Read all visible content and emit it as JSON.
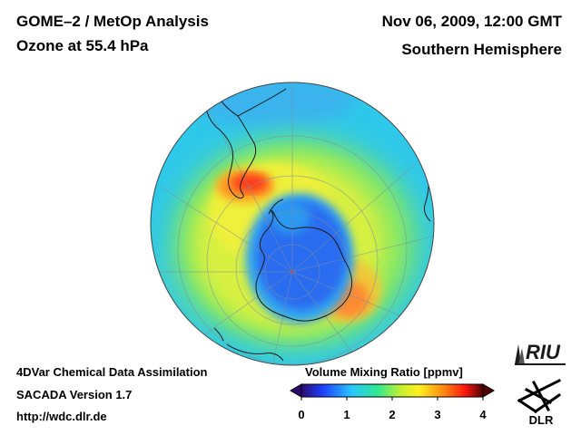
{
  "header": {
    "title_line1": "GOME–2 / MetOp Analysis",
    "title_line2": "Ozone at 55.4 hPa",
    "datetime": "Nov 06, 2009, 12:00 GMT",
    "hemisphere": "Southern Hemisphere"
  },
  "footer": {
    "line1": "4DVar Chemical Data Assimilation",
    "line2": "SACADA Version 1.7",
    "line3": "http://wdc.dlr.de"
  },
  "colorbar": {
    "title": "Volume Mixing Ratio [ppmv]",
    "ticks": [
      "0",
      "1",
      "2",
      "3",
      "4"
    ],
    "range": [
      0,
      4
    ],
    "colors": [
      "#2a0a70",
      "#1e40ff",
      "#28c8ff",
      "#30e890",
      "#c8f030",
      "#fff020",
      "#ff8a10",
      "#ff1a10",
      "#500000"
    ]
  },
  "logos": {
    "riu": "RIU",
    "dlr": "DLR"
  },
  "map": {
    "projection": "orthographic-south-pole",
    "colors": {
      "background_cyan": "#2ec8ea",
      "ring_green": "#8ee860",
      "ring_yellow": "#e8f040",
      "hole_blue": "#2a6cf0",
      "maximum_red": "#ff3a1a"
    }
  }
}
